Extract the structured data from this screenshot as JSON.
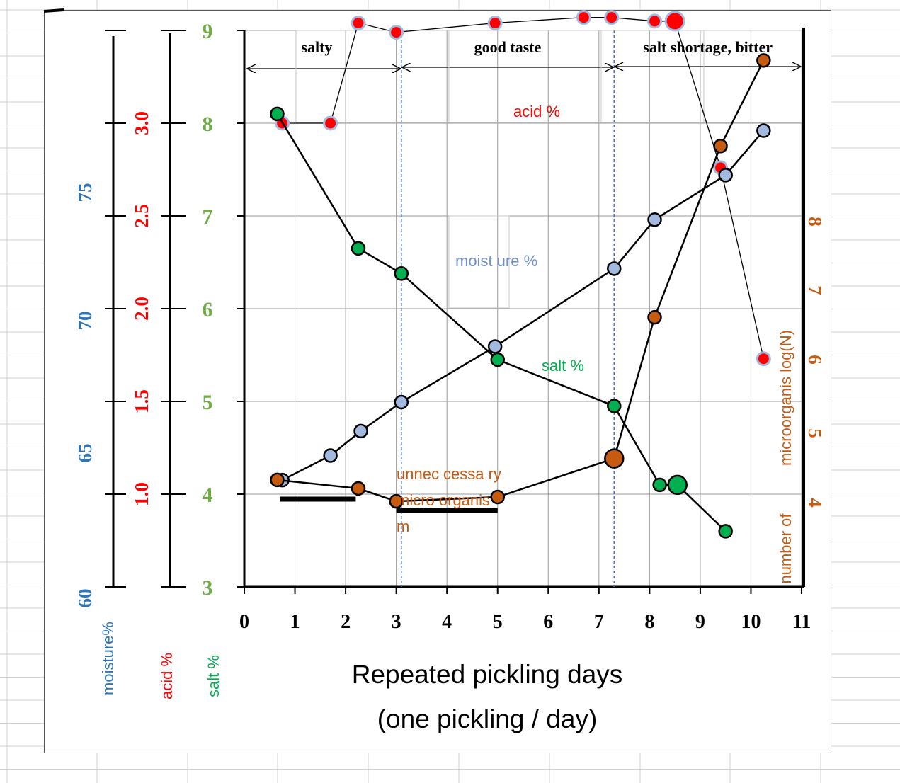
{
  "colors": {
    "background": "#ffffff",
    "sheet_grid": "#d0d0d0",
    "plot_grid": "#9a9a9a",
    "axis": "#000000",
    "moisture": "#2e75b6",
    "moisture_marker": "#a4b9e0",
    "acid": "#ff0000",
    "salt_axis": "#70ad47",
    "salt_marker": "#00b050",
    "microbe": "#c55a11",
    "phase_line": "#4472c4"
  },
  "chart_data": {
    "type": "line",
    "grid": true,
    "x": {
      "title_line1": "Repeated  pickling  days",
      "title_line2": "(one  pickling  /  day)",
      "range": [
        0,
        11
      ],
      "tick_labels": [
        "0",
        "1",
        "2",
        "3",
        "4",
        "5",
        "6",
        "7",
        "8",
        "9",
        "10",
        "11"
      ]
    },
    "axes": {
      "moisture": {
        "title": "moisture%",
        "range": [
          60,
          85
        ],
        "tick_labels": [
          "60",
          "65",
          "70",
          "75"
        ]
      },
      "acid": {
        "title": "acid %",
        "range": [
          0.5,
          3.5
        ],
        "tick_labels": [
          "1.0",
          "1.5",
          "2.0",
          "2.5",
          "3.0"
        ]
      },
      "salt": {
        "title": "salt   %",
        "range": [
          3,
          9
        ],
        "tick_labels": [
          "3",
          "4",
          "5",
          "6",
          "7",
          "8",
          "9"
        ]
      },
      "microbe": {
        "title_part1": "number of",
        "title_part2": "microorganis log(N)",
        "range": [
          2.8,
          9.3
        ],
        "tick_labels": [
          "4",
          "5",
          "6",
          "7",
          "8"
        ]
      }
    },
    "phases": [
      {
        "label": "salty",
        "from": 0,
        "to": 3.1
      },
      {
        "label": "good taste",
        "from": 3.1,
        "to": 7.3
      },
      {
        "label": "salt shortage, bitter",
        "from": 7.3,
        "to": 11
      }
    ],
    "phase_boundaries": [
      3.1,
      7.3
    ],
    "series": [
      {
        "name": "acid %",
        "axis": "acid",
        "label": "acid   %",
        "points": [
          [
            0.75,
            3.0
          ],
          [
            1.7,
            3.0
          ],
          [
            2.25,
            3.54
          ],
          [
            3.0,
            3.49
          ],
          [
            4.95,
            3.54
          ],
          [
            6.7,
            3.57
          ],
          [
            7.25,
            3.57
          ],
          [
            8.1,
            3.55
          ],
          [
            8.5,
            3.55
          ],
          [
            9.4,
            2.76
          ],
          [
            10.25,
            1.73
          ]
        ]
      },
      {
        "name": "moisture %",
        "axis": "moisture",
        "label": "moist  ure %",
        "points": [
          [
            0.75,
            64.8
          ],
          [
            1.7,
            65.9
          ],
          [
            2.3,
            67.0
          ],
          [
            3.1,
            68.3
          ],
          [
            4.95,
            70.8
          ],
          [
            7.3,
            74.3
          ],
          [
            8.1,
            76.5
          ],
          [
            9.5,
            78.5
          ],
          [
            10.25,
            80.5
          ]
        ]
      },
      {
        "name": "salt %",
        "axis": "salt",
        "label": "salt %",
        "points": [
          [
            0.65,
            8.1
          ],
          [
            2.25,
            6.65
          ],
          [
            3.1,
            6.38
          ],
          [
            5.0,
            5.45
          ],
          [
            7.3,
            4.95
          ],
          [
            8.2,
            4.1
          ],
          [
            8.55,
            4.1
          ],
          [
            9.5,
            3.6
          ]
        ]
      },
      {
        "name": "number of microorganisms",
        "axis": "microbe",
        "label_lines": [
          "unnec  cessa  ry",
          "micro  organis",
          "m"
        ],
        "points": [
          [
            0.65,
            4.05
          ],
          [
            2.25,
            3.95
          ],
          [
            3.0,
            3.8
          ],
          [
            5.0,
            3.85
          ],
          [
            7.3,
            4.3
          ],
          [
            8.1,
            5.95
          ],
          [
            9.4,
            7.95
          ],
          [
            10.25,
            8.95
          ]
        ],
        "bold_segments": [
          [
            0.7,
            2.2
          ],
          [
            3.0,
            5.0
          ]
        ]
      }
    ]
  }
}
